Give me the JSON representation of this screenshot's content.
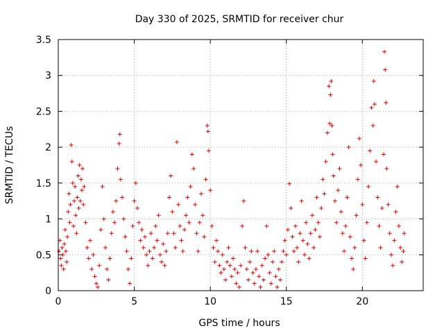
{
  "chart_data": {
    "type": "scatter",
    "title": "Day 330 of 2025, SRMTID for receiver chur",
    "xlabel": "GPS time / hours",
    "ylabel": "SRMTID / TECUs",
    "xlim": [
      0,
      24
    ],
    "ylim": [
      0,
      3.5
    ],
    "xticks": [
      0,
      5,
      10,
      15,
      20
    ],
    "xtick_labels": [
      "0",
      "5",
      "10",
      "15",
      "20"
    ],
    "yticks": [
      0,
      0.5,
      1,
      1.5,
      2,
      2.5,
      3,
      3.5
    ],
    "ytick_labels": [
      "0",
      "0.5",
      "1",
      "1.5",
      "2",
      "2.5",
      "3",
      "3.5"
    ],
    "grid": true,
    "marker": "+",
    "color": "#e00000",
    "series": [
      {
        "name": "SRMTID",
        "points": [
          [
            0.05,
            0.55
          ],
          [
            0.1,
            0.7
          ],
          [
            0.15,
            0.45
          ],
          [
            0.2,
            0.35
          ],
          [
            0.25,
            0.6
          ],
          [
            0.3,
            0.5
          ],
          [
            0.35,
            0.3
          ],
          [
            0.4,
            0.65
          ],
          [
            0.45,
            0.85
          ],
          [
            0.5,
            0.55
          ],
          [
            0.55,
            0.4
          ],
          [
            0.6,
            0.75
          ],
          [
            0.65,
            1.1
          ],
          [
            0.7,
            1.35
          ],
          [
            0.75,
            0.95
          ],
          [
            0.8,
            1.2
          ],
          [
            0.85,
            2.03
          ],
          [
            0.9,
            1.8
          ],
          [
            0.95,
            1.5
          ],
          [
            1.0,
            0.9
          ],
          [
            1.05,
            1.25
          ],
          [
            1.1,
            1.45
          ],
          [
            1.15,
            1.05
          ],
          [
            1.2,
            0.8
          ],
          [
            1.25,
            1.3
          ],
          [
            1.3,
            1.6
          ],
          [
            1.35,
            1.15
          ],
          [
            1.4,
            1.75
          ],
          [
            1.45,
            1.25
          ],
          [
            1.5,
            1.55
          ],
          [
            1.55,
            1.4
          ],
          [
            1.6,
            1.7
          ],
          [
            1.65,
            1.2
          ],
          [
            1.7,
            1.45
          ],
          [
            1.8,
            0.95
          ],
          [
            1.9,
            0.6
          ],
          [
            2.0,
            0.45
          ],
          [
            2.1,
            0.7
          ],
          [
            2.2,
            0.3
          ],
          [
            2.3,
            0.5
          ],
          [
            2.4,
            0.2
          ],
          [
            2.5,
            0.1
          ],
          [
            2.6,
            0.05
          ],
          [
            2.7,
            0.35
          ],
          [
            2.8,
            0.85
          ],
          [
            2.9,
            1.45
          ],
          [
            3.0,
            1.0
          ],
          [
            3.1,
            0.6
          ],
          [
            3.2,
            0.3
          ],
          [
            3.3,
            0.15
          ],
          [
            3.4,
            0.45
          ],
          [
            3.5,
            0.8
          ],
          [
            3.6,
            1.1
          ],
          [
            3.7,
            0.95
          ],
          [
            3.8,
            1.25
          ],
          [
            3.9,
            1.7
          ],
          [
            4.0,
            2.05
          ],
          [
            4.05,
            2.18
          ],
          [
            4.1,
            1.55
          ],
          [
            4.2,
            1.3
          ],
          [
            4.3,
            1.0
          ],
          [
            4.4,
            0.75
          ],
          [
            4.5,
            0.55
          ],
          [
            4.6,
            0.3
          ],
          [
            4.7,
            0.1
          ],
          [
            4.8,
            0.45
          ],
          [
            4.9,
            0.9
          ],
          [
            5.0,
            1.25
          ],
          [
            5.1,
            1.5
          ],
          [
            5.2,
            1.15
          ],
          [
            5.3,
            0.95
          ],
          [
            5.4,
            0.7
          ],
          [
            5.5,
            0.85
          ],
          [
            5.6,
            0.6
          ],
          [
            5.7,
            0.75
          ],
          [
            5.8,
            0.5
          ],
          [
            5.9,
            0.35
          ],
          [
            6.0,
            0.55
          ],
          [
            6.1,
            0.8
          ],
          [
            6.2,
            0.45
          ],
          [
            6.3,
            0.6
          ],
          [
            6.4,
            0.9
          ],
          [
            6.5,
            0.7
          ],
          [
            6.6,
            1.05
          ],
          [
            6.7,
            0.5
          ],
          [
            6.8,
            0.4
          ],
          [
            6.9,
            0.65
          ],
          [
            7.0,
            0.35
          ],
          [
            7.1,
            0.55
          ],
          [
            7.2,
            0.8
          ],
          [
            7.3,
            1.3
          ],
          [
            7.4,
            1.6
          ],
          [
            7.5,
            1.1
          ],
          [
            7.6,
            0.8
          ],
          [
            7.7,
            0.6
          ],
          [
            7.8,
            2.07
          ],
          [
            7.9,
            1.2
          ],
          [
            8.0,
            0.9
          ],
          [
            8.1,
            0.7
          ],
          [
            8.2,
            0.55
          ],
          [
            8.3,
            0.85
          ],
          [
            8.4,
            1.05
          ],
          [
            8.5,
            1.3
          ],
          [
            8.6,
            0.95
          ],
          [
            8.7,
            1.45
          ],
          [
            8.8,
            1.9
          ],
          [
            8.9,
            1.7
          ],
          [
            9.0,
            1.2
          ],
          [
            9.1,
            0.8
          ],
          [
            9.2,
            0.55
          ],
          [
            9.3,
            0.95
          ],
          [
            9.4,
            1.35
          ],
          [
            9.5,
            1.05
          ],
          [
            9.6,
            0.75
          ],
          [
            9.7,
            1.55
          ],
          [
            9.8,
            2.3
          ],
          [
            9.85,
            2.22
          ],
          [
            9.9,
            1.95
          ],
          [
            10.0,
            1.4
          ],
          [
            10.1,
            0.9
          ],
          [
            10.2,
            0.6
          ],
          [
            10.3,
            0.4
          ],
          [
            10.4,
            0.7
          ],
          [
            10.5,
            0.55
          ],
          [
            10.6,
            0.35
          ],
          [
            10.7,
            0.25
          ],
          [
            10.8,
            0.5
          ],
          [
            10.9,
            0.3
          ],
          [
            11.0,
            0.15
          ],
          [
            11.1,
            0.4
          ],
          [
            11.2,
            0.6
          ],
          [
            11.3,
            0.35
          ],
          [
            11.4,
            0.2
          ],
          [
            11.5,
            0.45
          ],
          [
            11.6,
            0.3
          ],
          [
            11.7,
            0.1
          ],
          [
            11.8,
            0.25
          ],
          [
            11.9,
            0.05
          ],
          [
            12.0,
            0.35
          ],
          [
            12.1,
            0.9
          ],
          [
            12.2,
            1.25
          ],
          [
            12.3,
            0.6
          ],
          [
            12.4,
            0.3
          ],
          [
            12.5,
            0.15
          ],
          [
            12.6,
            0.4
          ],
          [
            12.7,
            0.55
          ],
          [
            12.8,
            0.25
          ],
          [
            12.9,
            0.1
          ],
          [
            13.0,
            0.3
          ],
          [
            13.1,
            0.55
          ],
          [
            13.2,
            0.2
          ],
          [
            13.3,
            0.05
          ],
          [
            13.4,
            0.35
          ],
          [
            13.5,
            0.15
          ],
          [
            13.6,
            0.45
          ],
          [
            13.7,
            0.9
          ],
          [
            13.8,
            0.5
          ],
          [
            13.9,
            0.25
          ],
          [
            14.0,
            0.1
          ],
          [
            14.1,
            0.4
          ],
          [
            14.2,
            0.55
          ],
          [
            14.3,
            0.2
          ],
          [
            14.4,
            0.05
          ],
          [
            14.5,
            0.3
          ],
          [
            14.6,
            0.15
          ],
          [
            14.7,
            0.4
          ],
          [
            14.8,
            0.55
          ],
          [
            14.9,
            0.7
          ],
          [
            15.0,
            0.5
          ],
          [
            15.1,
            0.85
          ],
          [
            15.2,
            1.49
          ],
          [
            15.3,
            1.15
          ],
          [
            15.4,
            0.75
          ],
          [
            15.5,
            0.55
          ],
          [
            15.6,
            0.9
          ],
          [
            15.7,
            0.6
          ],
          [
            15.8,
            0.4
          ],
          [
            15.9,
            0.8
          ],
          [
            16.0,
            1.25
          ],
          [
            16.1,
            0.7
          ],
          [
            16.2,
            0.5
          ],
          [
            16.3,
            0.95
          ],
          [
            16.4,
            0.65
          ],
          [
            16.5,
            0.45
          ],
          [
            16.6,
            0.8
          ],
          [
            16.7,
            1.05
          ],
          [
            16.8,
            0.6
          ],
          [
            16.9,
            0.85
          ],
          [
            17.0,
            1.3
          ],
          [
            17.1,
            0.95
          ],
          [
            17.2,
            0.75
          ],
          [
            17.3,
            1.15
          ],
          [
            17.4,
            1.55
          ],
          [
            17.5,
            1.35
          ],
          [
            17.6,
            1.8
          ],
          [
            17.7,
            2.2
          ],
          [
            17.8,
            2.85
          ],
          [
            17.85,
            2.33
          ],
          [
            17.9,
            2.73
          ],
          [
            17.95,
            2.92
          ],
          [
            18.0,
            2.3
          ],
          [
            18.05,
            1.9
          ],
          [
            18.1,
            1.6
          ],
          [
            18.2,
            1.25
          ],
          [
            18.3,
            0.95
          ],
          [
            18.4,
            1.4
          ],
          [
            18.5,
            1.7
          ],
          [
            18.6,
            1.1
          ],
          [
            18.7,
            0.8
          ],
          [
            18.8,
            0.55
          ],
          [
            18.9,
            0.9
          ],
          [
            19.0,
            1.3
          ],
          [
            19.1,
            2.0
          ],
          [
            19.2,
            0.75
          ],
          [
            19.3,
            0.45
          ],
          [
            19.4,
            0.3
          ],
          [
            19.5,
            0.6
          ],
          [
            19.6,
            1.05
          ],
          [
            19.7,
            1.55
          ],
          [
            19.8,
            2.12
          ],
          [
            19.9,
            1.75
          ],
          [
            20.0,
            1.2
          ],
          [
            20.1,
            0.7
          ],
          [
            20.2,
            0.45
          ],
          [
            20.3,
            0.95
          ],
          [
            20.4,
            1.45
          ],
          [
            20.5,
            1.95
          ],
          [
            20.6,
            2.55
          ],
          [
            20.7,
            2.3
          ],
          [
            20.75,
            2.92
          ],
          [
            20.8,
            2.6
          ],
          [
            20.9,
            1.8
          ],
          [
            21.0,
            1.3
          ],
          [
            21.1,
            0.9
          ],
          [
            21.2,
            0.6
          ],
          [
            21.3,
            1.15
          ],
          [
            21.4,
            1.9
          ],
          [
            21.45,
            3.33
          ],
          [
            21.5,
            3.08
          ],
          [
            21.55,
            2.62
          ],
          [
            21.6,
            1.7
          ],
          [
            21.7,
            1.2
          ],
          [
            21.8,
            0.8
          ],
          [
            21.9,
            0.5
          ],
          [
            22.0,
            0.35
          ],
          [
            22.1,
            0.7
          ],
          [
            22.2,
            1.1
          ],
          [
            22.3,
            1.45
          ],
          [
            22.4,
            0.9
          ],
          [
            22.5,
            0.6
          ],
          [
            22.6,
            0.4
          ],
          [
            22.7,
            0.55
          ],
          [
            22.75,
            0.8
          ]
        ]
      }
    ]
  }
}
